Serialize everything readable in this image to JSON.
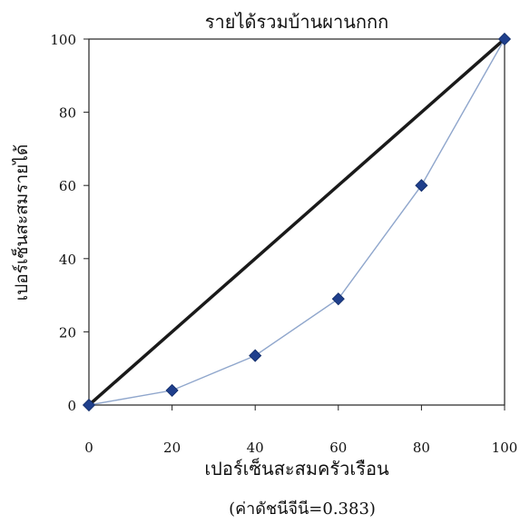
{
  "chart_data": {
    "type": "line",
    "title": "รายได้รวมบ้านผานกกก",
    "xlabel": "เปอร์เซ็นสะสมครัวเรือน",
    "ylabel": "เปอร์เซ็นสะสมรายได้",
    "caption": "(ค่าดัชนีจีนี=0.383)",
    "xlim": [
      0,
      100
    ],
    "ylim": [
      0,
      100
    ],
    "x_ticks": [
      "0",
      "20",
      "40",
      "60",
      "80",
      "100"
    ],
    "y_ticks": [
      "0",
      "20",
      "40",
      "60",
      "80",
      "100"
    ],
    "grid": false,
    "series": [
      {
        "role": "equality-line",
        "x": [
          0,
          100
        ],
        "y": [
          0,
          100
        ],
        "color": "#1a1a1a",
        "marker": "none"
      },
      {
        "role": "lorenz-curve",
        "x": [
          0,
          20,
          40,
          60,
          80,
          100
        ],
        "y": [
          0,
          4,
          13.5,
          29,
          60,
          100
        ],
        "color": "#1f3f8c",
        "line_color": "#8fa6cc",
        "marker": "diamond"
      }
    ]
  }
}
